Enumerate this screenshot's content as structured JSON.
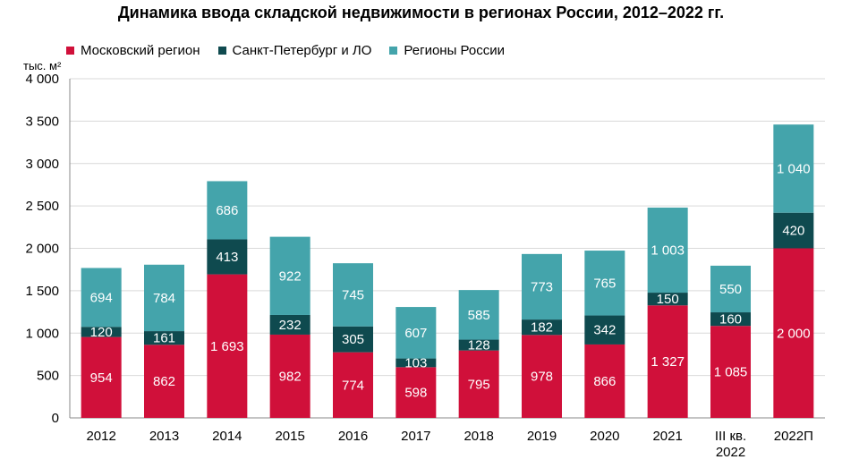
{
  "title": "Динамика ввода складской недвижимости в регионах России, 2012–2022 гг.",
  "unit_label": "тыс. м²",
  "legend": [
    {
      "label": "Московский регион",
      "color": "#d0103a"
    },
    {
      "label": "Санкт-Петербург и ЛО",
      "color": "#0f4a4f"
    },
    {
      "label": "Регионы России",
      "color": "#44a4ab"
    }
  ],
  "chart_data": {
    "type": "bar",
    "stacked": true,
    "categories": [
      "2012",
      "2013",
      "2014",
      "2015",
      "2016",
      "2017",
      "2018",
      "2019",
      "2020",
      "2021",
      "III кв.\n2022",
      "2022П"
    ],
    "series": [
      {
        "name": "Московский регион",
        "color": "#d0103a",
        "values": [
          954,
          862,
          1693,
          982,
          774,
          598,
          795,
          978,
          866,
          1327,
          1085,
          2000
        ],
        "labels": [
          "954",
          "862",
          "1 693",
          "982",
          "774",
          "598",
          "795",
          "978",
          "866",
          "1 327",
          "1 085",
          "2 000"
        ]
      },
      {
        "name": "Санкт-Петербург и ЛО",
        "color": "#0f4a4f",
        "values": [
          120,
          161,
          413,
          232,
          305,
          103,
          128,
          182,
          342,
          150,
          160,
          420
        ],
        "labels": [
          "120",
          "161",
          "413",
          "232",
          "305",
          "103",
          "128",
          "182",
          "342",
          "150",
          "160",
          "420"
        ]
      },
      {
        "name": "Регионы России",
        "color": "#44a4ab",
        "values": [
          694,
          784,
          686,
          922,
          745,
          607,
          585,
          773,
          765,
          1003,
          550,
          1040
        ],
        "labels": [
          "694",
          "784",
          "686",
          "922",
          "745",
          "607",
          "585",
          "773",
          "765",
          "1 003",
          "550",
          "1 040"
        ]
      }
    ],
    "ylim": [
      0,
      4000
    ],
    "yticks": [
      0,
      500,
      1000,
      1500,
      2000,
      2500,
      3000,
      3500,
      4000
    ],
    "ytick_labels": [
      "0",
      "500",
      "1 000",
      "1 500",
      "2 000",
      "2 500",
      "3 000",
      "3 500",
      "4 000"
    ],
    "grid": true,
    "legend_position": "top-left"
  }
}
